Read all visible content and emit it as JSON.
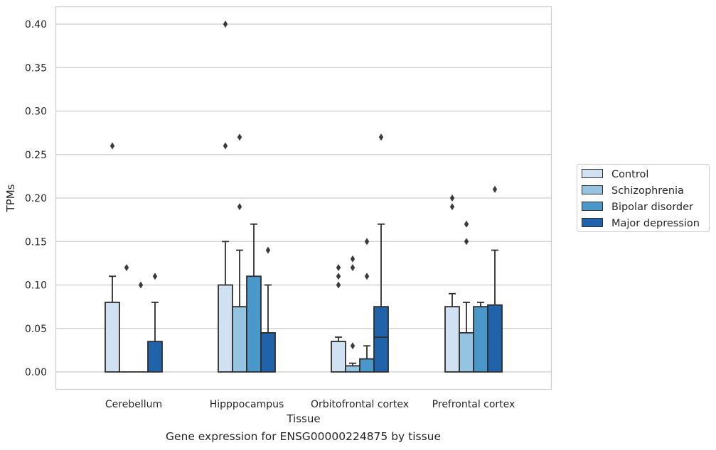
{
  "caption": "Gene expression for ENSG00000224875 by tissue",
  "chart_data": {
    "type": "bar",
    "xlabel": "Tissue",
    "ylabel": "TPMs",
    "ylim": [
      -0.02,
      0.42
    ],
    "yticks": [
      "0.00",
      "0.05",
      "0.10",
      "0.15",
      "0.20",
      "0.25",
      "0.30",
      "0.35",
      "0.40"
    ],
    "grid": true,
    "legend_position": "right",
    "categories": [
      "Cerebellum",
      "Hipppocampus",
      "Orbitofrontal cortex",
      "Prefrontal cortex"
    ],
    "series": [
      {
        "name": "Control",
        "color": "#d0e1f2",
        "values": [
          0.08,
          0.1,
          0.035,
          0.075
        ],
        "error_top": [
          0.11,
          0.15,
          0.04,
          0.09
        ],
        "outliers": [
          [
            0.26
          ],
          [
            0.26,
            0.4
          ],
          [
            0.1,
            0.11,
            0.12
          ],
          [
            0.19,
            0.2
          ]
        ]
      },
      {
        "name": "Schizophrenia",
        "color": "#94c4df",
        "values": [
          0.0,
          0.075,
          0.007,
          0.045
        ],
        "error_top": [
          null,
          0.14,
          0.01,
          0.08
        ],
        "outliers": [
          [
            0.12
          ],
          [
            0.19,
            0.27
          ],
          [
            0.03,
            0.12,
            0.13
          ],
          [
            0.15,
            0.17
          ]
        ]
      },
      {
        "name": "Bipolar disorder",
        "color": "#4a98c9",
        "values": [
          0.0,
          0.11,
          0.015,
          0.075
        ],
        "error_top": [
          null,
          0.17,
          0.03,
          0.08
        ],
        "outliers": [
          [
            0.1
          ],
          [],
          [
            0.11,
            0.15
          ],
          []
        ]
      },
      {
        "name": "Major depression",
        "color": "#2163aa",
        "values": [
          0.035,
          0.045,
          0.075,
          0.077
        ],
        "error_top": [
          0.08,
          0.1,
          0.17,
          0.14
        ],
        "median_line": [
          null,
          null,
          0.04,
          null
        ],
        "outliers": [
          [
            0.11
          ],
          [
            0.14
          ],
          [
            0.27
          ],
          [
            0.21
          ]
        ]
      }
    ]
  }
}
